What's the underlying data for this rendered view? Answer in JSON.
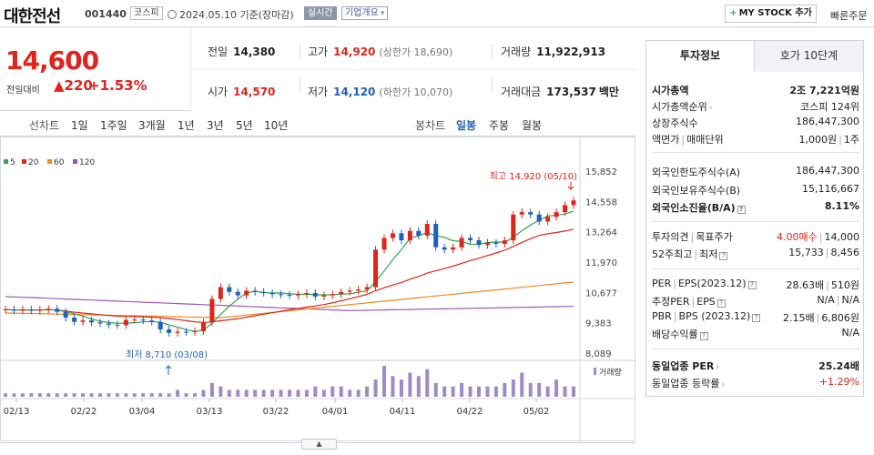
{
  "header": {
    "company_name": "대한전선",
    "code": "001440",
    "market": "코스피",
    "date_text": "2024.05.10 기준(장마감)",
    "realtime_label": "실시간",
    "overview_label": "기업개요",
    "mystock_label": "MY STOCK 추가",
    "quick_order_label": "빠른주문"
  },
  "price": {
    "current": "14,600",
    "change_label": "전일대비",
    "change_value": "220",
    "change_pct": "+1.53%"
  },
  "quote": {
    "prev_close_label": "전일",
    "prev_close": "14,380",
    "high_label": "고가",
    "high": "14,920",
    "upper_limit": "(상한가 18,690)",
    "volume_label": "거래량",
    "volume": "11,922,913",
    "open_label": "시가",
    "open": "14,570",
    "low_label": "저가",
    "low": "14,120",
    "lower_limit": "(하한가 10,070)",
    "trade_value_label": "거래대금",
    "trade_value": "173,537",
    "trade_value_unit": "백만"
  },
  "period_bar": {
    "line_chart_label": "선차트",
    "line_periods": [
      "1일",
      "1주일",
      "3개월",
      "1년",
      "3년",
      "5년",
      "10년"
    ],
    "candle_chart_label": "봉차트",
    "candle_periods": [
      "일봉",
      "주봉",
      "월봉"
    ],
    "active_candle": "일봉"
  },
  "colors": {
    "up": "#e0241b",
    "down": "#1f5fbf",
    "ma5": "#2ea44f",
    "ma20": "#e0241b",
    "ma60": "#ef8a1e",
    "ma120": "#9b59b6",
    "volume": "#9e8cc4"
  },
  "chart_data": {
    "type": "candlestick",
    "legend": [
      "5",
      "20",
      "60",
      "120"
    ],
    "yticks": [
      "15,852",
      "14,558",
      "13,264",
      "11,970",
      "10,677",
      "9,383",
      "8,089"
    ],
    "ylim": [
      8089,
      15852
    ],
    "xticks": [
      "02/13",
      "02/22",
      "03/04",
      "03/13",
      "03/22",
      "04/01",
      "04/11",
      "04/22",
      "05/02"
    ],
    "high_annotation": "최고 14,920 (05/10)",
    "low_annotation": "최저 8,710 (03/08)",
    "volume_label": "거래량",
    "closes": [
      9950,
      9900,
      9950,
      9900,
      9950,
      9980,
      9850,
      9600,
      9420,
      9480,
      9400,
      9350,
      9300,
      9280,
      9500,
      9520,
      9480,
      9420,
      9100,
      8950,
      9000,
      8980,
      9020,
      9400,
      10400,
      10900,
      10700,
      10550,
      10750,
      10700,
      10650,
      10600,
      10580,
      10550,
      10600,
      10650,
      10500,
      10550,
      10600,
      10700,
      10750,
      10800,
      10900,
      12500,
      13000,
      13200,
      12900,
      13300,
      13100,
      13600,
      12600,
      12500,
      12600,
      13000,
      12900,
      12700,
      12800,
      12750,
      12900,
      14000,
      14100,
      14000,
      13700,
      13900,
      14100,
      14400,
      14600
    ],
    "volumes": [
      1,
      1,
      1,
      1,
      1,
      1,
      1,
      1,
      1,
      1,
      1,
      1,
      1,
      1,
      1,
      1,
      1,
      1,
      1,
      1,
      2,
      1,
      1,
      2,
      4,
      3,
      2,
      2,
      2,
      2,
      2,
      2,
      2,
      2,
      2,
      2,
      3,
      2,
      3,
      3,
      2,
      2,
      3,
      5,
      9,
      6,
      5,
      7,
      6,
      8,
      4,
      3,
      3,
      4,
      3,
      3,
      3,
      3,
      4,
      5,
      7,
      4,
      4,
      3,
      5,
      3,
      3
    ]
  },
  "invest_info": {
    "tab_info": "투자정보",
    "tab_orderbook": "호가 10단계",
    "market_cap_label": "시가총액",
    "market_cap": "2조 7,221억원",
    "market_cap_rank_label": "시가총액순위",
    "market_cap_rank": "코스피 124위",
    "shares_label": "상장주식수",
    "shares": "186,447,300",
    "par_label": "액면가",
    "trade_unit_label": "매매단위",
    "par": "1,000원",
    "trade_unit": "1주",
    "foreign_limit_label": "외국인한도주식수(A)",
    "foreign_limit": "186,447,300",
    "foreign_hold_label": "외국인보유주식수(B)",
    "foreign_hold": "15,116,667",
    "foreign_ratio_label": "외국인소진율(B/A)",
    "foreign_ratio": "8.11%",
    "opinion_label": "투자의견",
    "target_label": "목표주가",
    "opinion": "4.00매수",
    "target": "14,000",
    "w52_label": "52주최고",
    "w52_low_label": "최저",
    "w52_high": "15,733",
    "w52_low": "8,456",
    "per_label": "PER",
    "eps_label": "EPS(2023.12)",
    "per": "28.63배",
    "eps": "510원",
    "est_per_label": "추정PER",
    "est_eps_label": "EPS",
    "est_per": "N/A",
    "est_eps": "N/A",
    "pbr_label": "PBR",
    "bps_label": "BPS (2023.12)",
    "pbr": "2.15배",
    "bps": "6,806원",
    "div_label": "배당수익률",
    "div": "N/A",
    "ind_per_label": "동일업종 PER",
    "ind_per": "25.24배",
    "ind_chg_label": "동일업종 등락률",
    "ind_chg": "+1.29%"
  }
}
